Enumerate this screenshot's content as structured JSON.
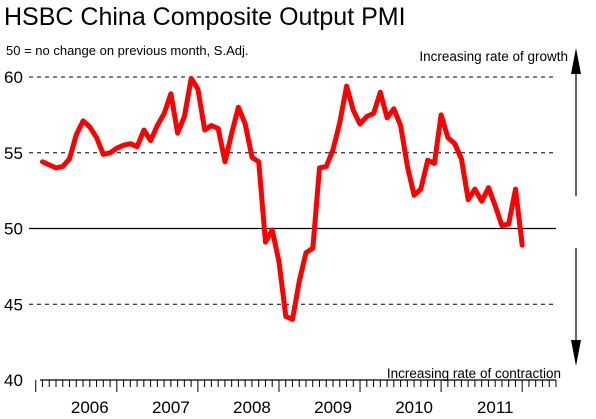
{
  "chart_data": {
    "type": "line",
    "title": "HSBC China Composite Output PMI",
    "subtitle": "50 = no change on previous month, S.Adj.",
    "xlabel": "",
    "ylabel": "",
    "ylim": [
      40,
      60
    ],
    "yticks": [
      "40",
      "45",
      "50",
      "55",
      "60"
    ],
    "xlim": [
      2005.25,
      2011.75
    ],
    "xticks": [
      {
        "label": "2006",
        "center": 2006.0
      },
      {
        "label": "2007",
        "center": 2007.0
      },
      {
        "label": "2008",
        "center": 2008.0
      },
      {
        "label": "2009",
        "center": 2009.0
      },
      {
        "label": "2010",
        "center": 2010.0
      },
      {
        "label": "2011",
        "center": 2011.0
      }
    ],
    "reference_line": 50,
    "dashed_gridlines": [
      45,
      55,
      60
    ],
    "annotations": {
      "top": "Increasing rate of growth",
      "bottom": "Increasing rate of contraction"
    },
    "series": [
      {
        "color": "#ff0000",
        "x": [
          2005.417,
          2005.5,
          2005.583,
          2005.667,
          2005.75,
          2005.833,
          2005.917,
          2006.0,
          2006.083,
          2006.167,
          2006.25,
          2006.333,
          2006.417,
          2006.5,
          2006.583,
          2006.667,
          2006.75,
          2006.833,
          2006.917,
          2007.0,
          2007.083,
          2007.167,
          2007.25,
          2007.333,
          2007.417,
          2007.5,
          2007.583,
          2007.667,
          2007.75,
          2007.833,
          2007.917,
          2008.0,
          2008.083,
          2008.167,
          2008.25,
          2008.333,
          2008.417,
          2008.5,
          2008.583,
          2008.667,
          2008.75,
          2008.833,
          2008.917,
          2009.0,
          2009.083,
          2009.167,
          2009.25,
          2009.333,
          2009.417,
          2009.5,
          2009.583,
          2009.667,
          2009.75,
          2009.833,
          2009.917,
          2010.0,
          2010.083,
          2010.167,
          2010.25,
          2010.333,
          2010.417,
          2010.5,
          2010.583,
          2010.667,
          2010.75,
          2010.833,
          2010.917,
          2011.0,
          2011.083,
          2011.167,
          2011.25,
          2011.333
        ],
        "values": [
          54.4,
          54.2,
          54.0,
          54.1,
          54.6,
          56.2,
          57.1,
          56.7,
          56.0,
          54.9,
          55.0,
          55.3,
          55.5,
          55.6,
          55.4,
          56.5,
          55.8,
          56.8,
          57.6,
          58.9,
          56.3,
          57.4,
          59.9,
          59.2,
          56.5,
          56.8,
          56.6,
          54.4,
          56.3,
          58.0,
          56.9,
          54.7,
          54.4,
          49.1,
          49.9,
          47.8,
          44.2,
          44.0,
          46.5,
          48.4,
          48.7,
          54.0,
          54.1,
          55.2,
          57.0,
          59.4,
          57.8,
          56.9,
          57.4,
          57.6,
          59.0,
          57.3,
          57.9,
          56.8,
          54.1,
          52.2,
          52.6,
          54.5,
          54.3,
          57.5,
          56.0,
          55.6,
          54.6,
          51.9,
          52.6,
          51.8,
          52.7,
          51.5,
          50.2,
          50.3,
          52.6,
          48.9
        ]
      }
    ]
  }
}
